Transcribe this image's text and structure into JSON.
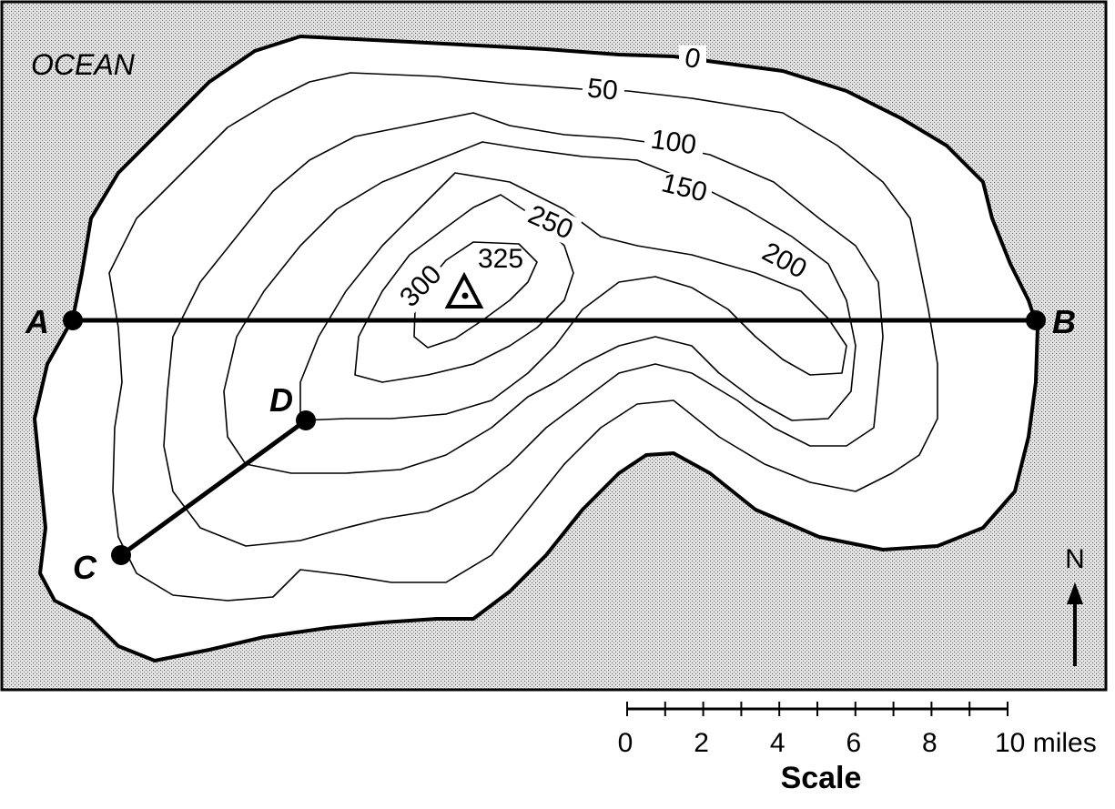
{
  "map": {
    "water_label": "OCEAN",
    "contours": [
      {
        "value": "0",
        "elevation": 0
      },
      {
        "value": "50",
        "elevation": 50
      },
      {
        "value": "100",
        "elevation": 100
      },
      {
        "value": "150",
        "elevation": 150
      },
      {
        "value": "200",
        "elevation": 200
      },
      {
        "value": "250",
        "elevation": 250
      },
      {
        "value": "300",
        "elevation": 300
      },
      {
        "value": "325",
        "elevation": 325
      }
    ],
    "points": {
      "a": "A",
      "b": "B",
      "c": "C",
      "d": "D"
    },
    "summit_marker": "triangle-benchmark",
    "north": "N",
    "scale": {
      "title": "Scale",
      "unit": "miles",
      "ticks": [
        "0",
        "2",
        "4",
        "6",
        "8",
        "10 miles"
      ],
      "max_value": 10
    },
    "colors": {
      "ocean_fill": "#d9d9d9",
      "land_fill": "#ffffff",
      "line": "#000000"
    }
  }
}
